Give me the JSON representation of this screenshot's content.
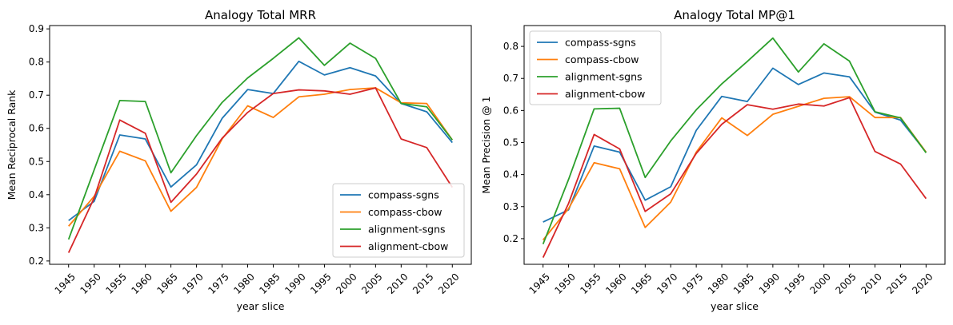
{
  "chart_data": [
    {
      "type": "line",
      "title": "Analogy Total MRR",
      "xlabel": "year slice",
      "ylabel": "Mean Reciprocal Rank",
      "categories": [
        "1945",
        "1950",
        "1955",
        "1960",
        "1965",
        "1970",
        "1975",
        "1980",
        "1985",
        "1990",
        "1995",
        "2000",
        "2005",
        "2010",
        "2015",
        "2020"
      ],
      "ylim": [
        0.19,
        0.91
      ],
      "yticks": [
        "0.2",
        "0.3",
        "0.4",
        "0.5",
        "0.6",
        "0.7",
        "0.8",
        "0.9"
      ],
      "legend_position": "lower-right",
      "grid": false,
      "series": [
        {
          "name": "compass-sgns",
          "color": "#1f77b4",
          "values": [
            0.322,
            0.38,
            0.58,
            0.568,
            0.423,
            0.49,
            0.63,
            0.717,
            0.705,
            0.802,
            0.761,
            0.783,
            0.758,
            0.675,
            0.65,
            0.557
          ]
        },
        {
          "name": "compass-cbow",
          "color": "#ff7f0e",
          "values": [
            0.305,
            0.395,
            0.531,
            0.502,
            0.35,
            0.422,
            0.568,
            0.668,
            0.633,
            0.695,
            0.703,
            0.717,
            0.722,
            0.677,
            0.675,
            0.565
          ]
        },
        {
          "name": "alignment-sgns",
          "color": "#2ca02c",
          "values": [
            0.265,
            0.475,
            0.684,
            0.681,
            0.466,
            0.578,
            0.678,
            0.752,
            0.811,
            0.873,
            0.79,
            0.857,
            0.811,
            0.675,
            0.665,
            0.565
          ]
        },
        {
          "name": "alignment-cbow",
          "color": "#d62728",
          "values": [
            0.225,
            0.39,
            0.625,
            0.585,
            0.377,
            0.462,
            0.57,
            0.648,
            0.705,
            0.716,
            0.713,
            0.703,
            0.722,
            0.568,
            0.542,
            0.422
          ]
        }
      ]
    },
    {
      "type": "line",
      "title": "Analogy Total MP@1",
      "xlabel": "year slice",
      "ylabel": "Mean Precision @ 1",
      "categories": [
        "1945",
        "1950",
        "1955",
        "1960",
        "1965",
        "1970",
        "1975",
        "1980",
        "1985",
        "1990",
        "1995",
        "2000",
        "2005",
        "2010",
        "2015",
        "2020"
      ],
      "ylim": [
        0.12,
        0.865
      ],
      "yticks": [
        "0.2",
        "0.3",
        "0.4",
        "0.5",
        "0.6",
        "0.7",
        "0.8"
      ],
      "legend_position": "upper-left",
      "grid": false,
      "series": [
        {
          "name": "compass-sgns",
          "color": "#1f77b4",
          "values": [
            0.252,
            0.29,
            0.489,
            0.47,
            0.32,
            0.362,
            0.538,
            0.644,
            0.628,
            0.732,
            0.681,
            0.717,
            0.705,
            0.595,
            0.57,
            0.47
          ]
        },
        {
          "name": "compass-cbow",
          "color": "#ff7f0e",
          "values": [
            0.196,
            0.294,
            0.437,
            0.418,
            0.235,
            0.314,
            0.47,
            0.577,
            0.522,
            0.588,
            0.613,
            0.638,
            0.643,
            0.578,
            0.578,
            0.47
          ]
        },
        {
          "name": "alignment-sgns",
          "color": "#2ca02c",
          "values": [
            0.183,
            0.385,
            0.605,
            0.607,
            0.391,
            0.505,
            0.602,
            0.683,
            0.753,
            0.826,
            0.72,
            0.808,
            0.754,
            0.596,
            0.577,
            0.468
          ]
        },
        {
          "name": "alignment-cbow",
          "color": "#d62728",
          "values": [
            0.141,
            0.31,
            0.525,
            0.48,
            0.285,
            0.34,
            0.466,
            0.557,
            0.618,
            0.604,
            0.62,
            0.614,
            0.64,
            0.472,
            0.433,
            0.325
          ]
        }
      ]
    }
  ]
}
